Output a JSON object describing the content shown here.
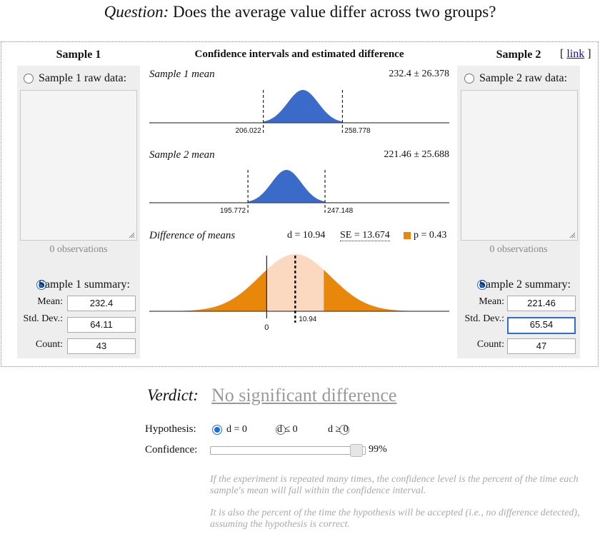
{
  "question": {
    "prefix": "Question:",
    "text": "Does the average value differ across two groups?"
  },
  "sample1": {
    "title": "Sample 1",
    "raw_label": "Sample 1 raw data:",
    "observations": "0 observations",
    "summary_label": "Sample 1 summary:",
    "mean_label": "Mean:",
    "std_label": "Std. Dev.:",
    "count_label": "Count:",
    "mean": "232.4",
    "std": "64.11",
    "count": "43",
    "raw_selected": false,
    "summary_selected": true
  },
  "sample2": {
    "title": "Sample 2",
    "link_label": "link",
    "raw_label": "Sample 2 raw data:",
    "observations": "0 observations",
    "summary_label": "Sample 2 summary:",
    "mean_label": "Mean:",
    "std_label": "Std. Dev.:",
    "count_label": "Count:",
    "mean": "221.46",
    "std": "65.54",
    "count": "47",
    "raw_selected": false,
    "summary_selected": true
  },
  "center": {
    "title": "Confidence intervals and estimated difference",
    "sample1_mean_label": "Sample 1 mean",
    "sample1_mean_value": "232.4 ± 26.378",
    "sample2_mean_label": "Sample 2 mean",
    "sample2_mean_value": "221.46 ± 25.688",
    "diff_label": "Difference of means",
    "diff_d": "d = 10.94",
    "diff_se": "SE = 13.674",
    "diff_p": "p = 0.43"
  },
  "chart_data": [
    {
      "type": "area",
      "title": "Sample 1 mean",
      "mean": 232.4,
      "margin": 26.378,
      "ci": [
        206.022,
        258.778
      ],
      "tick_labels": [
        "206.022",
        "258.778"
      ],
      "color": "#3b6bc9"
    },
    {
      "type": "area",
      "title": "Sample 2 mean",
      "mean": 221.46,
      "margin": 25.688,
      "ci": [
        195.772,
        247.148
      ],
      "tick_labels": [
        "195.772",
        "247.148"
      ],
      "color": "#3b6bc9"
    },
    {
      "type": "area",
      "title": "Difference of means",
      "d": 10.94,
      "se": 13.674,
      "p": 0.43,
      "tick_labels": [
        "0",
        "10.94"
      ],
      "tail_color": "#e8870a",
      "center_color": "#fbd9c0"
    }
  ],
  "verdict": {
    "label": "Verdict:",
    "text": "No significant difference"
  },
  "hypothesis": {
    "label": "Hypothesis:",
    "options": [
      "d = 0",
      "d ≤ 0",
      "d ≥ 0"
    ],
    "selected": 0
  },
  "confidence": {
    "label": "Confidence:",
    "value": 0.99,
    "value_label": "99%"
  },
  "notes": [
    "If the experiment is repeated many times, the confidence level is the percent of the time each sample's mean will fall within the confidence interval.",
    "It is also the percent of the time the hypothesis will be accepted (i.e., no difference detected), assuming the hypothesis is correct."
  ],
  "colors": {
    "blue": "#3b6bc9",
    "orange": "#e8870a",
    "peach": "#fbd9c0",
    "panel": "#eeeeee"
  }
}
